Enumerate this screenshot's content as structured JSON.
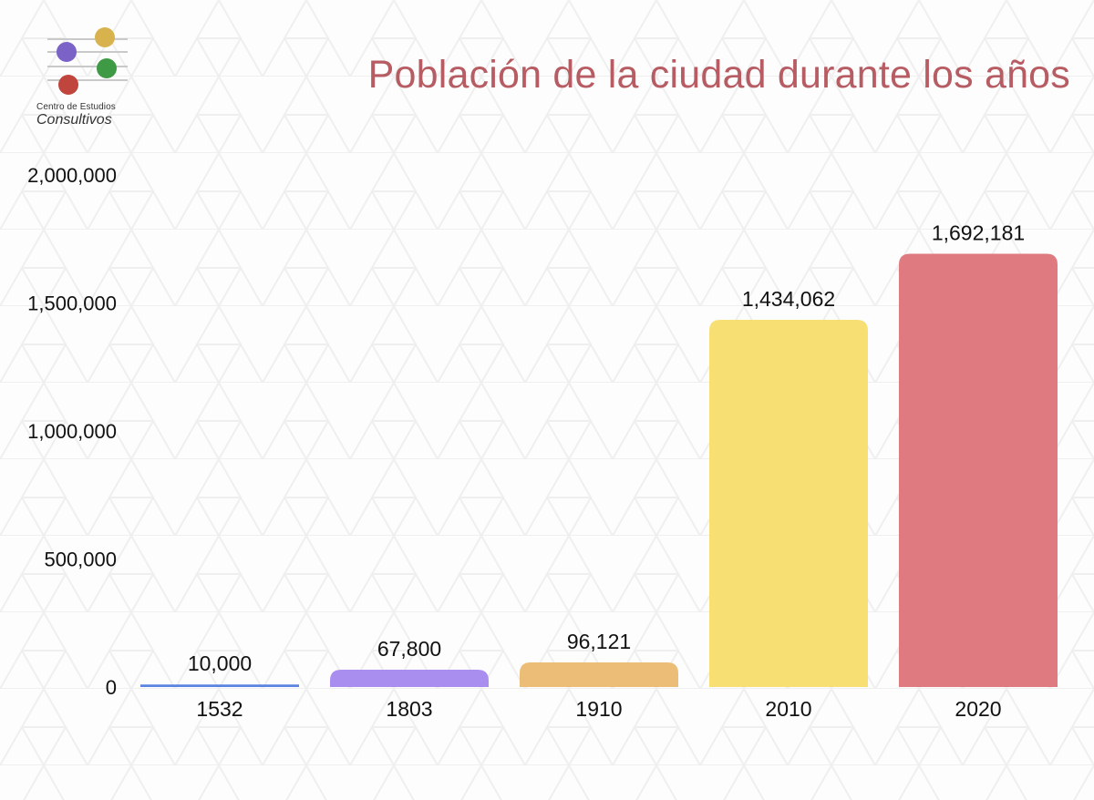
{
  "logo": {
    "line1": "Centro de Estudios",
    "line2": "Consultivos",
    "colors": [
      "#7a62c7",
      "#d8b24c",
      "#3f9a45",
      "#c0453c"
    ]
  },
  "chart_data": {
    "type": "bar",
    "title": "Población de la ciudad durante los años",
    "xlabel": "",
    "ylabel": "",
    "categories": [
      "1532",
      "1803",
      "1910",
      "2010",
      "2020"
    ],
    "values": [
      10000,
      67800,
      96121,
      1434062,
      1692181
    ],
    "value_labels": [
      "10,000",
      "67,800",
      "96,121",
      "1,434,062",
      "1,692,181"
    ],
    "colors": [
      "#5b83e0",
      "#a98ef0",
      "#ebbd76",
      "#f8df73",
      "#df7b80"
    ],
    "ylim": [
      0,
      2000000
    ],
    "yticks": [
      0,
      500000,
      1000000,
      1500000,
      2000000
    ],
    "ytick_labels": [
      "0",
      "500,000",
      "1,000,000",
      "1,500,000",
      "2,000,000"
    ],
    "grid": false,
    "legend": "none"
  }
}
